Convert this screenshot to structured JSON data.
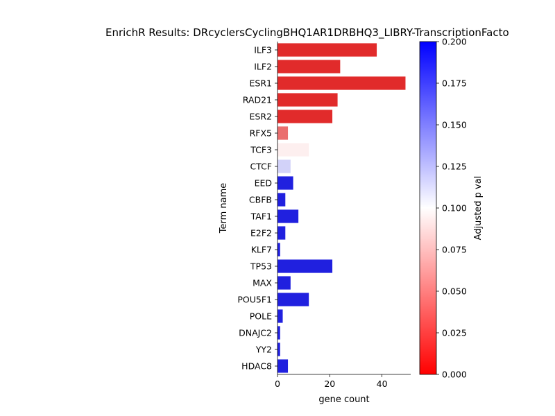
{
  "chart_data": {
    "type": "bar",
    "orientation": "horizontal",
    "title": "EnrichR Results: DRcyclersCyclingBHQ1AR1DRBHQ3_LIBRY-TranscriptionFacto",
    "xlabel": "gene count",
    "ylabel": "Term name",
    "xlim": [
      0,
      51
    ],
    "xticks": [
      "0",
      "20",
      "40"
    ],
    "xtick_values": [
      0,
      20,
      40
    ],
    "categories": [
      "ILF3",
      "ILF2",
      "ESR1",
      "RAD21",
      "ESR2",
      "RFX5",
      "TCF3",
      "CTCF",
      "EED",
      "CBFB",
      "TAF1",
      "E2F2",
      "KLF7",
      "TP53",
      "MAX",
      "POU5F1",
      "POLE",
      "DNAJC2",
      "YY2",
      "HDAC8"
    ],
    "values": [
      38,
      24,
      49,
      23,
      21,
      4,
      12,
      5,
      6,
      3,
      8,
      3,
      1,
      21,
      5,
      12,
      2,
      1,
      1,
      4
    ],
    "adjusted_p": [
      0.005,
      0.005,
      0.005,
      0.005,
      0.005,
      0.035,
      0.093,
      0.12,
      0.2,
      0.2,
      0.2,
      0.2,
      0.2,
      0.2,
      0.2,
      0.2,
      0.2,
      0.2,
      0.2,
      0.2
    ],
    "colorbar": {
      "label": "Adjusted p val",
      "range": [
        0.0,
        0.2
      ],
      "ticks": [
        "0.000",
        "0.025",
        "0.050",
        "0.075",
        "0.100",
        "0.125",
        "0.150",
        "0.175",
        "0.200"
      ],
      "tick_values": [
        0.0,
        0.025,
        0.05,
        0.075,
        0.1,
        0.125,
        0.15,
        0.175,
        0.2
      ],
      "colormap": [
        "#ff0000",
        "#ffffff",
        "#0000ff"
      ]
    },
    "grid": false,
    "legend": "none"
  }
}
